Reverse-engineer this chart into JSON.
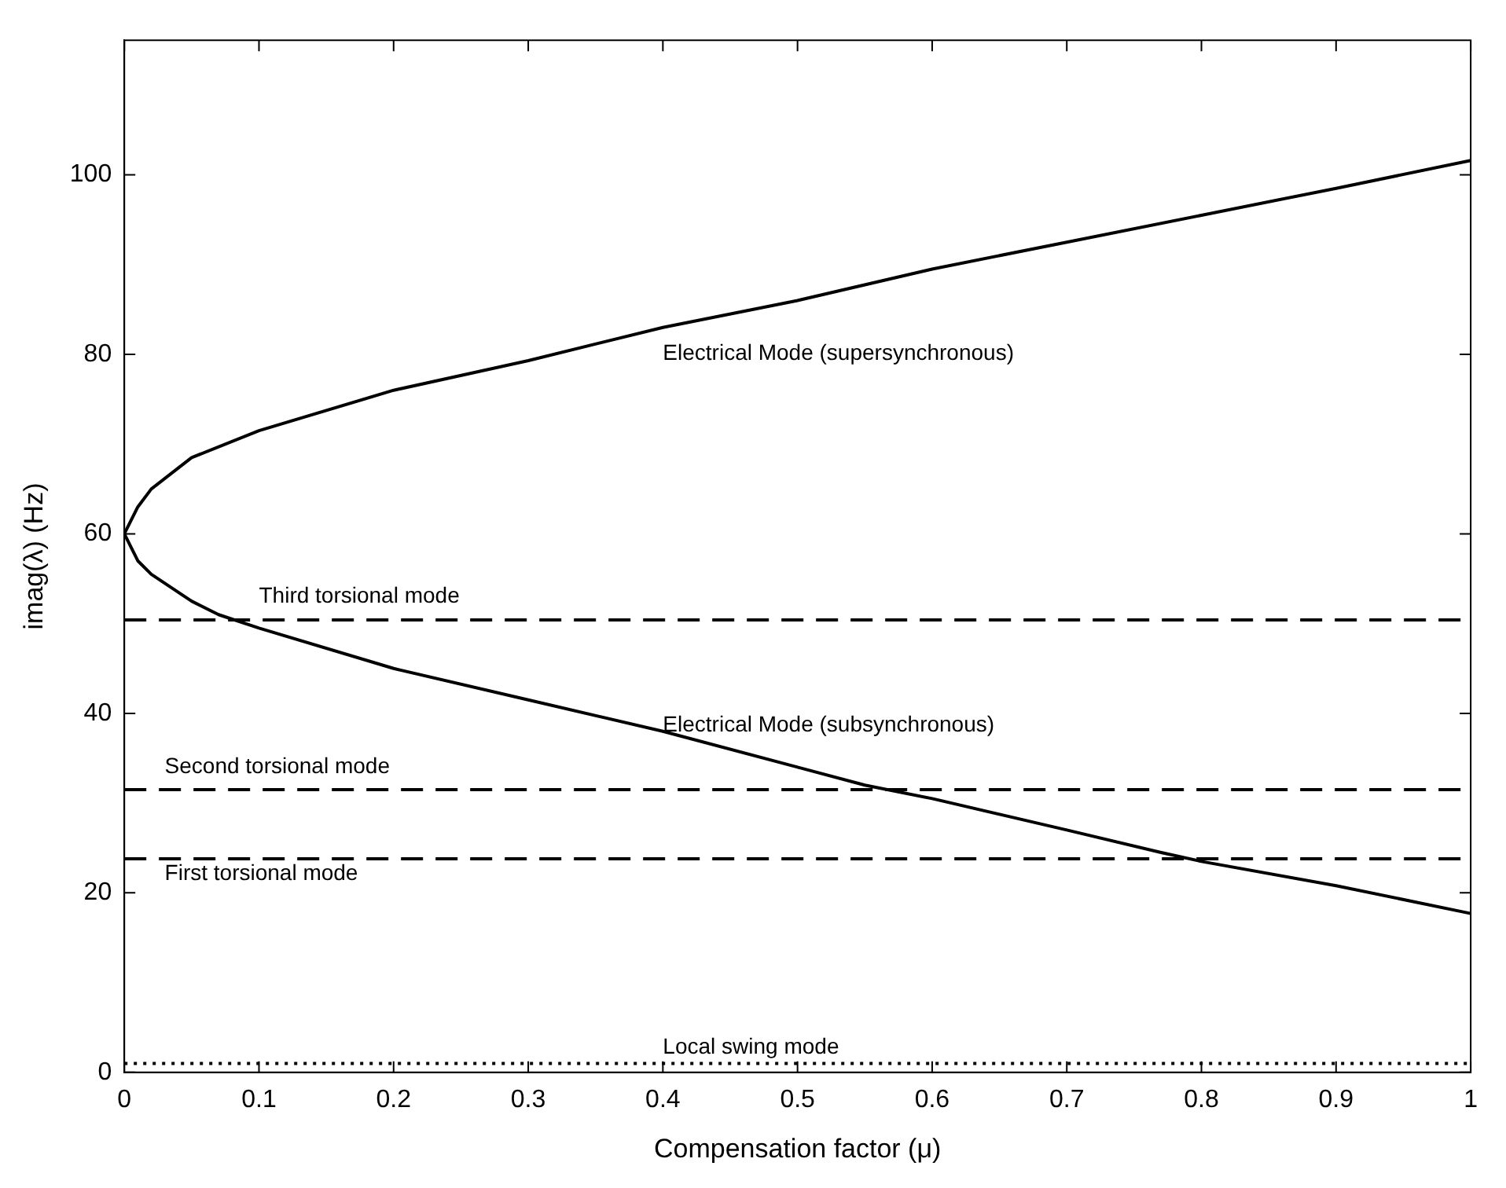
{
  "chart_data": {
    "type": "line",
    "xlabel": "Compensation factor (μ)",
    "ylabel": "imag(λ) (Hz)",
    "xlim": [
      0,
      1
    ],
    "ylim": [
      0,
      115
    ],
    "xticks": [
      0,
      0.1,
      0.2,
      0.3,
      0.4,
      0.5,
      0.6,
      0.7,
      0.8,
      0.9,
      1
    ],
    "yticks": [
      0,
      20,
      40,
      60,
      80,
      100
    ],
    "grid": false,
    "legend": false,
    "marker": "none",
    "series": [
      {
        "name": "Electrical Mode (supersynchronous)",
        "color": "#000000",
        "line_style": "solid",
        "x": [
          0,
          0.01,
          0.02,
          0.05,
          0.1,
          0.2,
          0.3,
          0.4,
          0.5,
          0.6,
          0.7,
          0.8,
          0.9,
          1
        ],
        "values": [
          60,
          63,
          65,
          68.5,
          71.5,
          76,
          79.3,
          83,
          86,
          89.5,
          92.5,
          95.5,
          98.5,
          101.6
        ]
      },
      {
        "name": "Electrical Mode (subsynchronous)",
        "color": "#000000",
        "line_style": "solid",
        "x": [
          0,
          0.01,
          0.02,
          0.05,
          0.07,
          0.1,
          0.2,
          0.3,
          0.4,
          0.5,
          0.55,
          0.6,
          0.7,
          0.77,
          0.8,
          0.9,
          1
        ],
        "values": [
          60,
          57,
          55.5,
          52.5,
          51,
          49.5,
          45,
          41.5,
          38,
          34,
          32,
          30.5,
          27,
          24.5,
          23.5,
          20.8,
          17.7
        ]
      },
      {
        "name": "Third torsional mode",
        "color": "#000000",
        "line_style": "dashed",
        "x": [
          0,
          1
        ],
        "values": [
          50.4,
          50.4
        ]
      },
      {
        "name": "Second torsional mode",
        "color": "#000000",
        "line_style": "dashed",
        "x": [
          0,
          1
        ],
        "values": [
          31.5,
          31.5
        ]
      },
      {
        "name": "First torsional mode",
        "color": "#000000",
        "line_style": "dashed",
        "x": [
          0,
          1
        ],
        "values": [
          23.8,
          23.8
        ]
      },
      {
        "name": "Local swing mode",
        "color": "#000000",
        "line_style": "dotted",
        "x": [
          0,
          1
        ],
        "values": [
          1,
          1
        ]
      }
    ]
  }
}
